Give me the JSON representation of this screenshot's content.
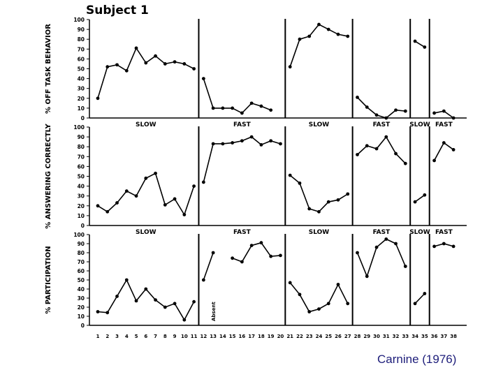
{
  "figure": {
    "title": "Subject 1",
    "caption": "Carnine (1976)"
  },
  "chart_data": {
    "type": "line",
    "x_ticks": [
      1,
      2,
      3,
      4,
      5,
      6,
      7,
      8,
      9,
      10,
      11,
      12,
      13,
      14,
      15,
      16,
      17,
      18,
      19,
      20,
      21,
      22,
      23,
      24,
      25,
      26,
      27,
      28,
      29,
      30,
      31,
      32,
      33,
      34,
      35,
      36,
      37,
      38
    ],
    "phase_breaks": [
      11.5,
      20.5,
      27.5,
      33.5,
      35.5
    ],
    "phase_labels": [
      {
        "label": "SLOW",
        "from": 1,
        "to": 11
      },
      {
        "label": "FAST",
        "from": 12,
        "to": 20
      },
      {
        "label": "SLOW",
        "from": 21,
        "to": 27
      },
      {
        "label": "FAST",
        "from": 28,
        "to": 33
      },
      {
        "label": "SLOW",
        "from": 34,
        "to": 35
      },
      {
        "label": "FAST",
        "from": 36,
        "to": 38
      }
    ],
    "ylim": [
      0,
      100
    ],
    "y_ticks": [
      0,
      10,
      20,
      30,
      40,
      50,
      60,
      70,
      80,
      90,
      100
    ],
    "panels": [
      {
        "ylabel": "% OFF TASK BEHAVIOR",
        "segments": [
          {
            "x": [
              1,
              2,
              3,
              4,
              5,
              6,
              7,
              8,
              9,
              10,
              11
            ],
            "y": [
              20,
              52,
              54,
              48,
              71,
              56,
              63,
              55,
              57,
              55,
              50
            ]
          },
          {
            "x": [
              12,
              13,
              14,
              15,
              16,
              17,
              18,
              19,
              20
            ],
            "y": [
              40,
              10,
              10,
              10,
              5,
              15,
              12,
              8,
              null
            ]
          },
          {
            "x": [
              21,
              22,
              23,
              24,
              25,
              26,
              27
            ],
            "y": [
              52,
              80,
              83,
              95,
              90,
              85,
              83
            ]
          },
          {
            "x": [
              28,
              29,
              30,
              31,
              32,
              33
            ],
            "y": [
              21,
              11,
              3,
              0,
              8,
              7
            ]
          },
          {
            "x": [
              34,
              35
            ],
            "y": [
              78,
              72
            ]
          },
          {
            "x": [
              36,
              37,
              38
            ],
            "y": [
              5,
              7,
              0
            ]
          }
        ]
      },
      {
        "ylabel": "% ANSWERING CORRECTLY",
        "segments": [
          {
            "x": [
              1,
              2,
              3,
              4,
              5,
              6,
              7,
              8,
              9,
              10,
              11
            ],
            "y": [
              20,
              14,
              23,
              35,
              30,
              48,
              53,
              21,
              27,
              11,
              40
            ]
          },
          {
            "x": [
              12,
              13,
              14,
              15,
              16,
              17,
              18,
              19,
              20
            ],
            "y": [
              44,
              83,
              83,
              84,
              86,
              90,
              82,
              86,
              83
            ]
          },
          {
            "x": [
              21,
              22,
              23,
              24,
              25,
              26,
              27
            ],
            "y": [
              51,
              43,
              17,
              14,
              24,
              26,
              32
            ]
          },
          {
            "x": [
              28,
              29,
              30,
              31,
              32,
              33
            ],
            "y": [
              72,
              81,
              78,
              90,
              73,
              63
            ]
          },
          {
            "x": [
              34,
              35
            ],
            "y": [
              24,
              31
            ]
          },
          {
            "x": [
              36,
              37,
              38
            ],
            "y": [
              66,
              84,
              77
            ]
          }
        ]
      },
      {
        "ylabel": "% PARTICIPATION",
        "annotation": {
          "text": "Absent",
          "x": 13
        },
        "segments": [
          {
            "x": [
              1,
              2,
              3,
              4,
              5,
              6,
              7,
              8,
              9,
              10,
              11
            ],
            "y": [
              15,
              14,
              32,
              50,
              27,
              40,
              28,
              20,
              24,
              6,
              26
            ]
          },
          {
            "x": [
              12,
              13,
              14,
              15,
              16,
              17,
              18,
              19,
              20
            ],
            "y": [
              50,
              80,
              null,
              74,
              70,
              88,
              91,
              76,
              77
            ]
          },
          {
            "x": [
              21,
              22,
              23,
              24,
              25,
              26,
              27
            ],
            "y": [
              47,
              34,
              15,
              18,
              24,
              45,
              24
            ]
          },
          {
            "x": [
              28,
              29,
              30,
              31,
              32,
              33
            ],
            "y": [
              80,
              54,
              86,
              95,
              90,
              65
            ]
          },
          {
            "x": [
              34,
              35
            ],
            "y": [
              24,
              35
            ]
          },
          {
            "x": [
              36,
              37,
              38
            ],
            "y": [
              87,
              90,
              87
            ]
          }
        ]
      }
    ]
  }
}
